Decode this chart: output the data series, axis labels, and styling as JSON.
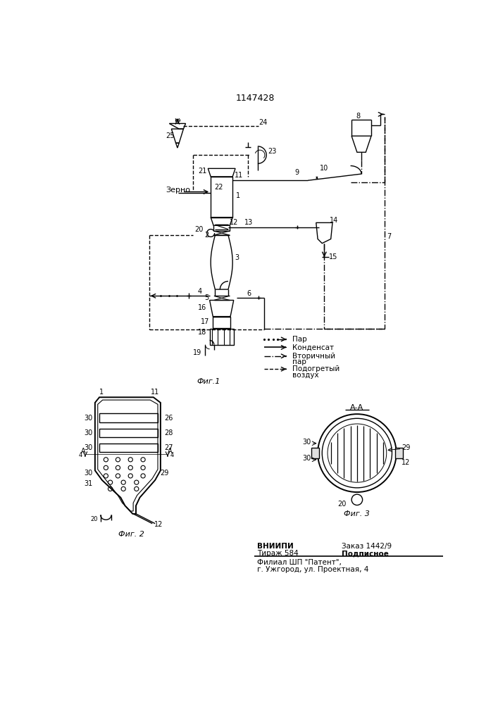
{
  "title": "1147428",
  "bg_color": "#ffffff",
  "fig1_caption": "Фиг.1",
  "fig2_caption": "Фиг. 2",
  "fig3_caption": "Фиг. 3"
}
